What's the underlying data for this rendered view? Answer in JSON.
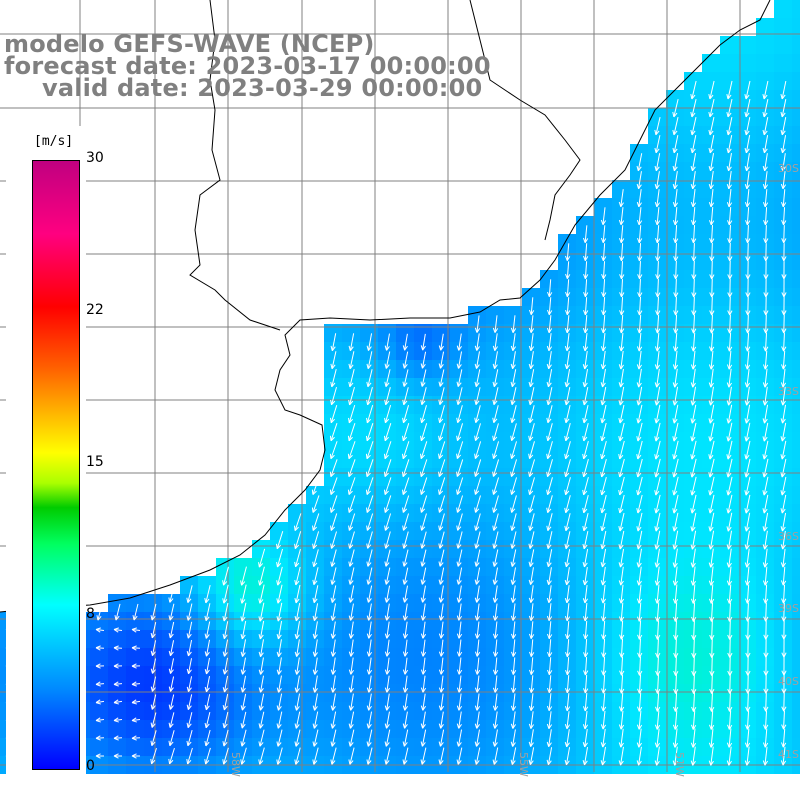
{
  "header": {
    "model_line": "modelo GEFS-WAVE (NCEP)",
    "forecast_line": "forecast date: 2023-03-17 00:00:00",
    "valid_line": "valid date: 2023-03-29 00:00:00"
  },
  "colorbar": {
    "unit": "[m/s]",
    "ticks": [
      "30",
      "22",
      "15",
      "8",
      "0"
    ],
    "tick_values": [
      30,
      22,
      15,
      8,
      0
    ],
    "colors": {
      "min": "#0000ff",
      "low": "#00ffff",
      "mid": "#00cc00",
      "high": "#ff0000",
      "max": "#c00080"
    }
  },
  "map": {
    "land_color": "#ffffff",
    "grid_color": "#808080",
    "coastline_color": "#000000",
    "arrow_color": "#ffffff",
    "longitude_labels": [
      "58W",
      "55W",
      "51W"
    ],
    "latitude_labels": [
      "30S",
      "33S",
      "36S",
      "39S",
      "40S",
      "41S"
    ],
    "dominant_field_color": "#00c0ff",
    "strong_field_color": "#20ff80",
    "weak_field_color": "#0040ff"
  }
}
